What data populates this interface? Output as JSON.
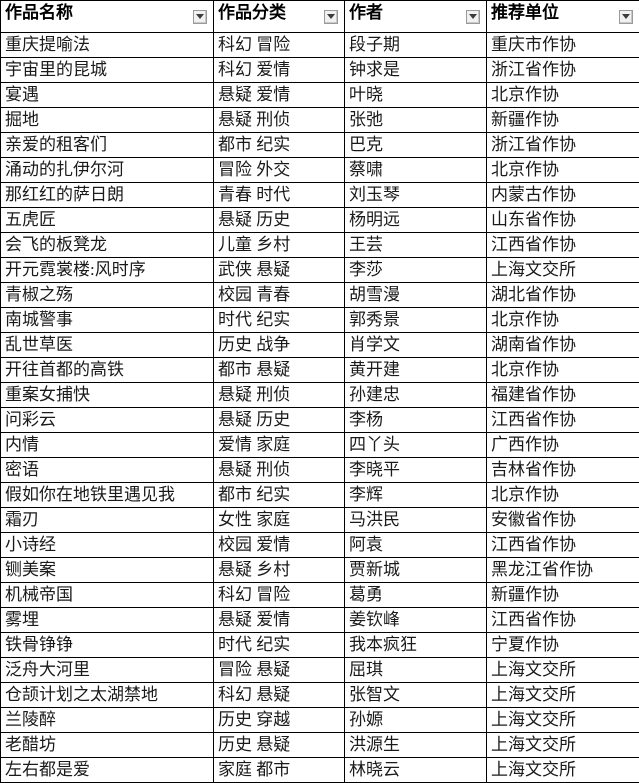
{
  "table": {
    "columns": [
      {
        "label": "作品名称",
        "filter_icon": "filter-dropdown-icon"
      },
      {
        "label": "作品分类",
        "filter_icon": "filter-dropdown-icon"
      },
      {
        "label": "作者",
        "filter_icon": "filter-dropdown-icon"
      },
      {
        "label": "推荐单位",
        "filter_icon": "filter-dropdown-icon"
      }
    ],
    "rows": [
      [
        "重庆提喻法",
        "科幻 冒险",
        "段子期",
        "重庆市作协"
      ],
      [
        "宇宙里的昆城",
        "科幻 爱情",
        "钟求是",
        "浙江省作协"
      ],
      [
        "宴遇",
        "悬疑 爱情",
        "叶晓",
        "北京作协"
      ],
      [
        "掘地",
        "悬疑 刑侦",
        "张弛",
        "新疆作协"
      ],
      [
        "亲爱的租客们",
        "都市 纪实",
        "巴克",
        "浙江省作协"
      ],
      [
        "涌动的扎伊尔河",
        "冒险 外交",
        "蔡啸",
        "北京作协"
      ],
      [
        "那红红的萨日朗",
        "青春 时代",
        "刘玉琴",
        "内蒙古作协"
      ],
      [
        "五虎匠",
        "悬疑 历史",
        "杨明远",
        "山东省作协"
      ],
      [
        "会飞的板凳龙",
        "儿童 乡村",
        "王芸",
        "江西省作协"
      ],
      [
        "开元霓裳楼:风时序",
        "武侠 悬疑",
        "李莎",
        "上海文交所"
      ],
      [
        "青椒之殇",
        "校园 青春",
        "胡雪漫",
        "湖北省作协"
      ],
      [
        "南城警事",
        "时代 纪实",
        "郭秀景",
        "北京作协"
      ],
      [
        "乱世草医",
        "历史 战争",
        "肖学文",
        "湖南省作协"
      ],
      [
        "开往首都的高铁",
        "都市 悬疑",
        "黄开建",
        "北京作协"
      ],
      [
        "重案女捕快",
        "悬疑 刑侦",
        "孙建忠",
        "福建省作协"
      ],
      [
        "问彩云",
        "悬疑 历史",
        "李杨",
        "江西省作协"
      ],
      [
        "内情",
        "爱情 家庭",
        "四丫头",
        "广西作协"
      ],
      [
        "密语",
        "悬疑 刑侦",
        "李晓平",
        "吉林省作协"
      ],
      [
        "假如你在地铁里遇见我",
        "都市 纪实",
        "李辉",
        "北京作协"
      ],
      [
        "霜刃",
        "女性 家庭",
        "马洪民",
        "安徽省作协"
      ],
      [
        "小诗经",
        "校园 爱情",
        "阿袁",
        "江西省作协"
      ],
      [
        "铡美案",
        "悬疑 乡村",
        "贾新城",
        "黑龙江省作协"
      ],
      [
        "机械帝国",
        "科幻 冒险",
        "葛勇",
        "新疆作协"
      ],
      [
        "雾埋",
        "悬疑 爱情",
        "姜钦峰",
        "江西省作协"
      ],
      [
        "铁骨铮铮",
        "时代 纪实",
        "我本疯狂",
        "宁夏作协"
      ],
      [
        "泛舟大河里",
        "冒险 悬疑",
        "屈琪",
        "上海文交所"
      ],
      [
        "仓颉计划之太湖禁地",
        "科幻 悬疑",
        "张智文",
        "上海文交所"
      ],
      [
        "兰陵醉",
        "历史 穿越",
        "孙嫄",
        "上海文交所"
      ],
      [
        "老醋坊",
        "历史 悬疑",
        "洪源生",
        "上海文交所"
      ],
      [
        "左右都是爱",
        "家庭 都市",
        "林晓云",
        "上海文交所"
      ]
    ]
  },
  "colors": {
    "grid_border": "#000000",
    "cell_text": "#1a1a1a",
    "header_text": "#000000",
    "filter_button_bg": "#f1f1f1",
    "filter_button_border": "#9a9a9a",
    "filter_arrow": "#3c3c3c",
    "background": "#ffffff"
  }
}
